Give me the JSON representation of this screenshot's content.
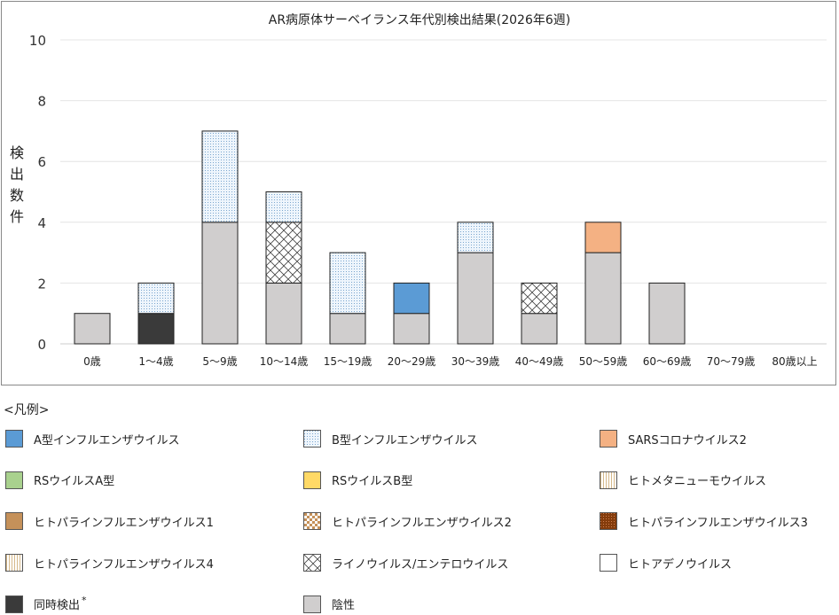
{
  "chart_data": {
    "type": "bar",
    "stacked": true,
    "title": "AR病原体サーベイランス年代別検出結果(2026年6週)",
    "ylabel": "検出数件",
    "ylim": [
      0,
      10
    ],
    "yticks": [
      0,
      2,
      4,
      6,
      8,
      10
    ],
    "grid": true,
    "categories": [
      "0歳",
      "1〜4歳",
      "5〜9歳",
      "10〜14歳",
      "15〜19歳",
      "20〜29歳",
      "30〜39歳",
      "40〜49歳",
      "50〜59歳",
      "60〜69歳",
      "70〜79歳",
      "80歳以上"
    ],
    "series": [
      {
        "name": "陰性",
        "color": "#d0cece",
        "pattern": "solid",
        "values": [
          1,
          0,
          4,
          2,
          1,
          1,
          3,
          1,
          3,
          2,
          0,
          0
        ]
      },
      {
        "name": "同時検出",
        "color": "#3a3a3a",
        "pattern": "solid",
        "values": [
          0,
          1,
          0,
          0,
          0,
          0,
          0,
          0,
          0,
          0,
          0,
          0
        ]
      },
      {
        "name": "A型インフルエンザウイルス",
        "color": "#5b9bd5",
        "pattern": "solid",
        "values": [
          0,
          0,
          0,
          0,
          0,
          1,
          0,
          0,
          0,
          0,
          0,
          0
        ]
      },
      {
        "name": "SARSコロナウイルス2",
        "color": "#f4b183",
        "pattern": "solid",
        "values": [
          0,
          0,
          0,
          0,
          0,
          0,
          0,
          0,
          1,
          0,
          0,
          0
        ]
      },
      {
        "name": "ライノウイルス/エンテロウイルス",
        "color": "#555555",
        "pattern": "cross",
        "values": [
          0,
          0,
          0,
          2,
          0,
          0,
          0,
          1,
          0,
          0,
          0,
          0
        ]
      },
      {
        "name": "B型インフルエンザウイルス",
        "color": "#9dc3e6",
        "pattern": "dots",
        "values": [
          0,
          1,
          3,
          1,
          2,
          0,
          1,
          0,
          0,
          0,
          0,
          0
        ]
      }
    ],
    "legend_placement": "bottom"
  },
  "legend": {
    "title": "<凡例>",
    "items": [
      {
        "label": "A型インフルエンザウイルス",
        "color": "#5b9bd5",
        "pattern": "solid"
      },
      {
        "label": "B型インフルエンザウイルス",
        "color": "#9dc3e6",
        "pattern": "dots"
      },
      {
        "label": "SARSコロナウイルス2",
        "color": "#f4b183",
        "pattern": "solid"
      },
      {
        "label": "RSウイルスA型",
        "color": "#a9d18e",
        "pattern": "solid"
      },
      {
        "label": "RSウイルスB型",
        "color": "#ffd966",
        "pattern": "solid"
      },
      {
        "label": "ヒトメタニューモウイルス",
        "color": "#f2e3a0",
        "pattern": "vlines"
      },
      {
        "label": "ヒトパラインフルエンザウイルス1",
        "color": "#c5915a",
        "pattern": "solid"
      },
      {
        "label": "ヒトパラインフルエンザウイルス2",
        "color": "#c5915a",
        "pattern": "checker"
      },
      {
        "label": "ヒトパラインフルエンザウイルス3",
        "color": "#843c0c",
        "pattern": "dense"
      },
      {
        "label": "ヒトパラインフルエンザウイルス4",
        "color": "#c5a080",
        "pattern": "vlines"
      },
      {
        "label": "ライノウイルス/エンテロウイルス",
        "color": "#888888",
        "pattern": "cross"
      },
      {
        "label": "ヒトアデノウイルス",
        "color": "#ffffff",
        "pattern": "solid"
      },
      {
        "label": "同時検出",
        "color": "#3a3a3a",
        "pattern": "solid",
        "note": "*"
      },
      {
        "label": "陰性",
        "color": "#d0cece",
        "pattern": "solid"
      }
    ]
  }
}
